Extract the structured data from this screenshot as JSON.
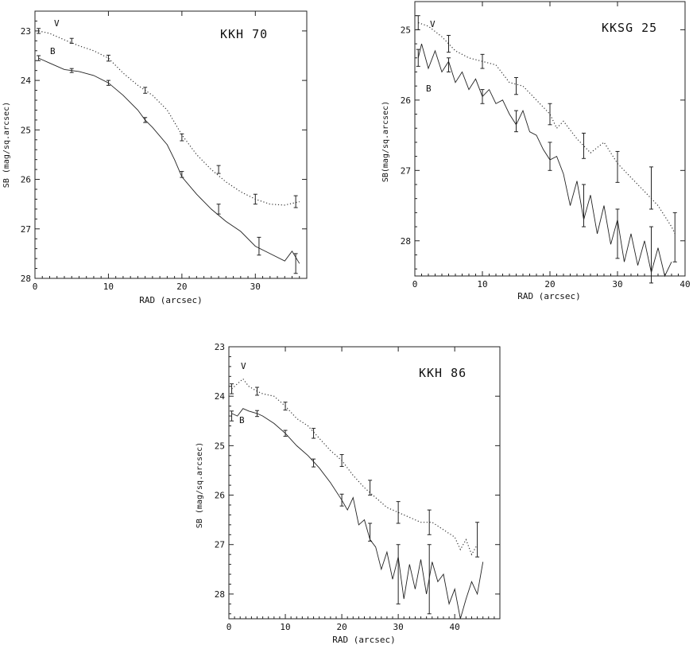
{
  "chart_data": [
    {
      "type": "line",
      "title": "KKH 70",
      "xlabel": "RAD (arcsec)",
      "ylabel": "SB (mag/sq.arcsec)",
      "xlim": [
        0,
        37
      ],
      "ylim": [
        28,
        22.6
      ],
      "xticks": [
        0,
        10,
        20,
        30
      ],
      "yticks": [
        23,
        24,
        25,
        26,
        27,
        28
      ],
      "ytick_labels": [
        "23",
        "24",
        "25",
        "26",
        "27",
        "28"
      ],
      "labels": {
        "V": "V",
        "B": "B"
      },
      "series": [
        {
          "name": "V",
          "style": "dotted",
          "x": [
            0.5,
            2,
            4,
            6,
            8,
            10,
            12,
            14,
            16,
            18,
            20,
            22,
            24,
            26,
            28,
            30,
            32,
            34,
            36
          ],
          "y": [
            23.0,
            23.05,
            23.18,
            23.3,
            23.4,
            23.55,
            23.85,
            24.1,
            24.3,
            24.6,
            25.1,
            25.5,
            25.8,
            26.05,
            26.25,
            26.4,
            26.5,
            26.52,
            26.45
          ],
          "errorbars": [
            {
              "x": 0.5,
              "y": 23.0,
              "e": 0.05
            },
            {
              "x": 5,
              "y": 23.2,
              "e": 0.05
            },
            {
              "x": 10,
              "y": 23.55,
              "e": 0.06
            },
            {
              "x": 15,
              "y": 24.2,
              "e": 0.06
            },
            {
              "x": 20,
              "y": 25.15,
              "e": 0.07
            },
            {
              "x": 25,
              "y": 25.8,
              "e": 0.08
            },
            {
              "x": 30,
              "y": 26.4,
              "e": 0.1
            },
            {
              "x": 35.5,
              "y": 26.45,
              "e": 0.12
            }
          ]
        },
        {
          "name": "B",
          "style": "solid",
          "x": [
            0.5,
            2,
            4,
            6,
            8,
            10,
            12,
            14,
            15,
            16,
            18,
            19,
            20,
            22,
            24,
            26,
            28,
            30,
            32,
            34,
            35,
            36
          ],
          "y": [
            23.55,
            23.65,
            23.78,
            23.82,
            23.9,
            24.05,
            24.3,
            24.6,
            24.8,
            24.95,
            25.3,
            25.6,
            25.95,
            26.3,
            26.6,
            26.85,
            27.05,
            27.35,
            27.5,
            27.65,
            27.45,
            27.7
          ],
          "errorbars": [
            {
              "x": 0.5,
              "y": 23.55,
              "e": 0.05
            },
            {
              "x": 5,
              "y": 23.8,
              "e": 0.04
            },
            {
              "x": 10,
              "y": 24.05,
              "e": 0.05
            },
            {
              "x": 15,
              "y": 24.8,
              "e": 0.05
            },
            {
              "x": 20,
              "y": 25.9,
              "e": 0.06
            },
            {
              "x": 25,
              "y": 26.6,
              "e": 0.1
            },
            {
              "x": 30.5,
              "y": 27.35,
              "e": 0.18
            },
            {
              "x": 35.5,
              "y": 27.7,
              "e": 0.2
            }
          ]
        }
      ]
    },
    {
      "type": "line",
      "title": "KKSG 25",
      "xlabel": "RAD (arcsec)",
      "ylabel": "SB(mag/sq.arcsec)",
      "xlim": [
        0,
        40
      ],
      "ylim": [
        28.5,
        24.6
      ],
      "xticks": [
        0,
        10,
        20,
        30,
        40
      ],
      "yticks": [
        25,
        26,
        27,
        28
      ],
      "ytick_labels": [
        "25",
        "26",
        "27",
        "28"
      ],
      "labels": {
        "V": "V",
        "B": "B"
      },
      "series": [
        {
          "name": "V",
          "style": "dotted",
          "x": [
            0.5,
            2,
            4,
            6,
            8,
            10,
            12,
            14,
            16,
            18,
            20,
            21,
            22,
            24,
            26,
            28,
            30,
            32,
            34,
            36,
            38,
            38.5
          ],
          "y": [
            24.9,
            24.95,
            25.1,
            25.3,
            25.4,
            25.45,
            25.5,
            25.75,
            25.8,
            26.0,
            26.2,
            26.4,
            26.3,
            26.55,
            26.75,
            26.6,
            26.9,
            27.1,
            27.3,
            27.5,
            27.8,
            27.9
          ],
          "errorbars": [
            {
              "x": 0.5,
              "y": 24.9,
              "e": 0.1
            },
            {
              "x": 5,
              "y": 25.2,
              "e": 0.12
            },
            {
              "x": 10,
              "y": 25.45,
              "e": 0.1
            },
            {
              "x": 15,
              "y": 25.8,
              "e": 0.12
            },
            {
              "x": 20,
              "y": 26.2,
              "e": 0.15
            },
            {
              "x": 25,
              "y": 26.65,
              "e": 0.18
            },
            {
              "x": 30,
              "y": 26.95,
              "e": 0.22
            },
            {
              "x": 35,
              "y": 27.25,
              "e": 0.3
            },
            {
              "x": 38.5,
              "y": 27.95,
              "e": 0.35
            }
          ]
        },
        {
          "name": "B",
          "style": "solid",
          "x": [
            0.5,
            1,
            2,
            3,
            4,
            5,
            6,
            7,
            8,
            9,
            10,
            11,
            12,
            13,
            14,
            15,
            16,
            17,
            18,
            19,
            20,
            21,
            22,
            23,
            24,
            25,
            26,
            27,
            28,
            29,
            30,
            31,
            32,
            33,
            34,
            35,
            36,
            37,
            38
          ],
          "y": [
            25.4,
            25.2,
            25.55,
            25.3,
            25.6,
            25.45,
            25.75,
            25.6,
            25.85,
            25.7,
            25.95,
            25.85,
            26.05,
            26.0,
            26.2,
            26.35,
            26.15,
            26.45,
            26.5,
            26.7,
            26.85,
            26.8,
            27.05,
            27.5,
            27.15,
            27.7,
            27.35,
            27.9,
            27.5,
            28.05,
            27.7,
            28.3,
            27.9,
            28.35,
            28.0,
            28.45,
            28.1,
            28.5,
            28.3
          ],
          "errorbars": [
            {
              "x": 0.5,
              "y": 25.4,
              "e": 0.12
            },
            {
              "x": 5,
              "y": 25.5,
              "e": 0.1
            },
            {
              "x": 10,
              "y": 25.95,
              "e": 0.1
            },
            {
              "x": 15,
              "y": 26.3,
              "e": 0.15
            },
            {
              "x": 20,
              "y": 26.8,
              "e": 0.2
            },
            {
              "x": 25,
              "y": 27.5,
              "e": 0.3
            },
            {
              "x": 30,
              "y": 27.9,
              "e": 0.35
            },
            {
              "x": 35,
              "y": 28.2,
              "e": 0.4
            }
          ]
        }
      ]
    },
    {
      "type": "line",
      "title": "KKH 86",
      "xlabel": "RAD (arcsec)",
      "ylabel": "SB (mag/sq.arcsec)",
      "xlim": [
        0,
        48
      ],
      "ylim": [
        28.5,
        23
      ],
      "xticks": [
        0,
        10,
        20,
        30,
        40
      ],
      "yticks": [
        23,
        24,
        25,
        26,
        27,
        28
      ],
      "ytick_labels": [
        "23",
        "24",
        "25",
        "26",
        "27",
        "28"
      ],
      "labels": {
        "V": "V",
        "B": "B"
      },
      "series": [
        {
          "name": "V",
          "style": "dotted",
          "x": [
            0.5,
            1.5,
            2.5,
            3.5,
            5,
            6,
            8,
            10,
            12,
            14,
            16,
            18,
            20,
            22,
            24,
            26,
            28,
            30,
            32,
            34,
            36,
            38,
            40,
            41,
            42,
            43,
            44
          ],
          "y": [
            23.85,
            23.75,
            23.65,
            23.8,
            23.9,
            23.95,
            24.0,
            24.2,
            24.45,
            24.6,
            24.85,
            25.1,
            25.3,
            25.6,
            25.85,
            26.05,
            26.25,
            26.35,
            26.45,
            26.55,
            26.55,
            26.7,
            26.85,
            27.1,
            26.9,
            27.2,
            27.0
          ],
          "errorbars": [
            {
              "x": 0.5,
              "y": 23.85,
              "e": 0.1
            },
            {
              "x": 5,
              "y": 23.9,
              "e": 0.08
            },
            {
              "x": 10,
              "y": 24.2,
              "e": 0.08
            },
            {
              "x": 15,
              "y": 24.75,
              "e": 0.1
            },
            {
              "x": 20,
              "y": 25.3,
              "e": 0.12
            },
            {
              "x": 25,
              "y": 25.85,
              "e": 0.15
            },
            {
              "x": 30,
              "y": 26.35,
              "e": 0.22
            },
            {
              "x": 35.5,
              "y": 26.55,
              "e": 0.25
            },
            {
              "x": 44,
              "y": 26.9,
              "e": 0.35
            }
          ]
        },
        {
          "name": "B",
          "style": "solid",
          "x": [
            0.5,
            1.5,
            2.5,
            3.5,
            5,
            6,
            8,
            10,
            12,
            14,
            16,
            18,
            20,
            21,
            22,
            23,
            24,
            25,
            26,
            27,
            28,
            29,
            30,
            31,
            32,
            33,
            34,
            35,
            36,
            37,
            38,
            39,
            40,
            41,
            42,
            43,
            44,
            45
          ],
          "y": [
            24.35,
            24.4,
            24.25,
            24.3,
            24.35,
            24.4,
            24.55,
            24.75,
            25.0,
            25.2,
            25.45,
            25.75,
            26.1,
            26.3,
            26.05,
            26.6,
            26.5,
            26.9,
            27.05,
            27.5,
            27.15,
            27.7,
            27.25,
            28.1,
            27.4,
            27.9,
            27.3,
            28.0,
            27.35,
            27.75,
            27.6,
            28.2,
            27.9,
            28.5,
            28.1,
            27.75,
            28.0,
            27.35
          ],
          "errorbars": [
            {
              "x": 0.5,
              "y": 24.4,
              "e": 0.1
            },
            {
              "x": 5,
              "y": 24.35,
              "e": 0.06
            },
            {
              "x": 10,
              "y": 24.75,
              "e": 0.06
            },
            {
              "x": 15,
              "y": 25.35,
              "e": 0.08
            },
            {
              "x": 20,
              "y": 26.1,
              "e": 0.12
            },
            {
              "x": 25,
              "y": 26.75,
              "e": 0.18
            },
            {
              "x": 30,
              "y": 27.6,
              "e": 0.6
            },
            {
              "x": 35.5,
              "y": 27.7,
              "e": 0.7
            }
          ]
        }
      ]
    }
  ]
}
